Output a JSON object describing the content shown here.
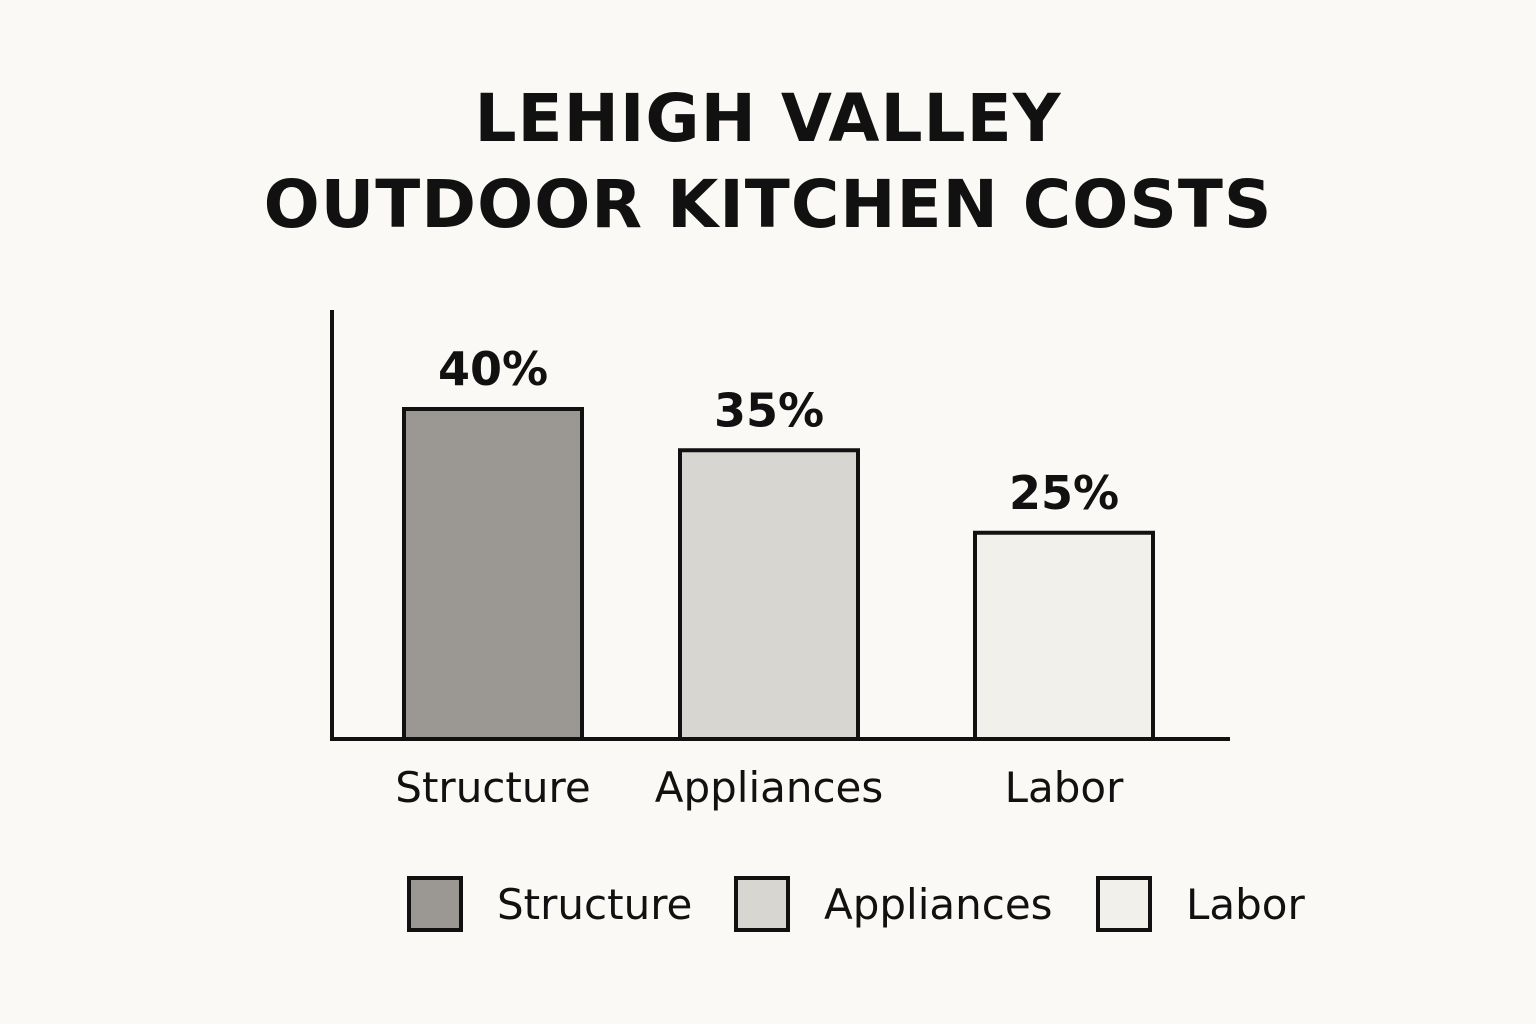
{
  "chart_data": {
    "type": "bar",
    "title": [
      "LEHIGH VALLEY",
      "OUTDOOR KITCHEN COSTS"
    ],
    "categories": [
      "Structure",
      "Appliances",
      "Labor"
    ],
    "values": [
      40,
      35,
      25
    ],
    "value_labels": [
      "40%",
      "35%",
      "25%"
    ],
    "unit": "%",
    "ylim": [
      0,
      52
    ],
    "grid": false,
    "colors": [
      "#9b9894",
      "#d8d6d1",
      "#f2f0eb"
    ],
    "legend": {
      "position": "bottom",
      "entries": [
        "Structure",
        "Appliances",
        "Labor"
      ]
    }
  }
}
